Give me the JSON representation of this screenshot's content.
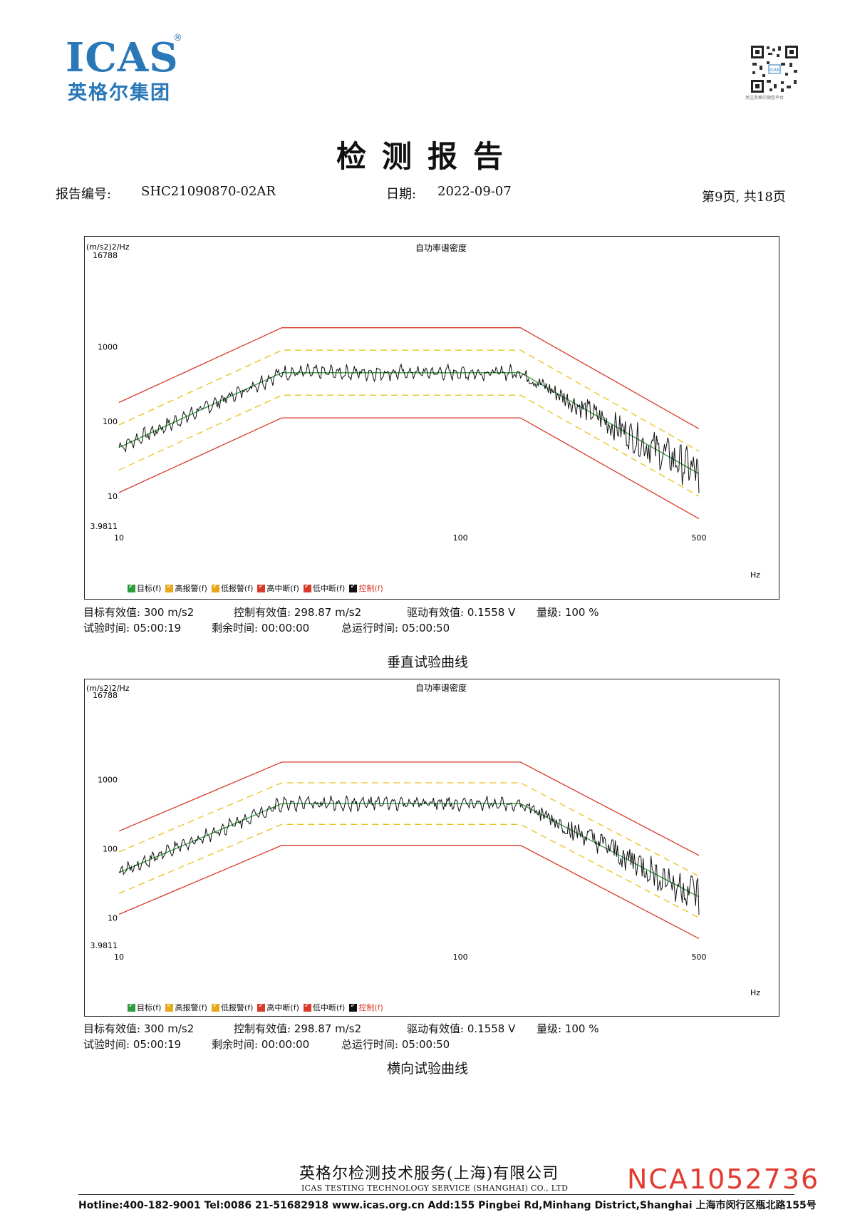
{
  "logo": {
    "text": "ICAS",
    "reg": "®",
    "cn": "英格尔集团"
  },
  "qr_caption": "关注英格尔微信平台",
  "title": "检测报告",
  "header": {
    "report_no_label": "报告编号:",
    "report_no": "SHC21090870-02AR",
    "date_label": "日期:",
    "date": "2022-09-07",
    "page": "第9页, 共18页"
  },
  "colors": {
    "target": "#2e9c3a",
    "alarm": "#e8c21a",
    "abort": "#d93a2a",
    "control": "#111111",
    "brand": "#2a78b8",
    "serial": "#e23b2f"
  },
  "legend": [
    {
      "label": "目标(f)",
      "color": "#2e9c3a"
    },
    {
      "label": "高报警(f)",
      "color": "#e8a81a"
    },
    {
      "label": "低报警(f)",
      "color": "#e8a81a"
    },
    {
      "label": "高中断(f)",
      "color": "#d93a2a"
    },
    {
      "label": "低中断(f)",
      "color": "#d93a2a"
    },
    {
      "label": "控制(f)",
      "color": "#111111"
    }
  ],
  "chart_data": [
    {
      "type": "line",
      "title": "自功率谱密度",
      "ylabel": "(m/s2)2/Hz",
      "xunit": "Hz",
      "xscale": "log",
      "yscale": "log",
      "xlim": [
        10,
        500
      ],
      "ylim": [
        3.9811,
        16788
      ],
      "y_tick_labels": [
        "16788",
        "1000",
        "100",
        "10",
        "3.9811"
      ],
      "x_tick_labels": [
        "10",
        "100",
        "500"
      ],
      "x_breakpoints": [
        10,
        30,
        150,
        500
      ],
      "series": [
        {
          "name": "目标(f)",
          "values": [
            45,
            450,
            450,
            20
          ]
        },
        {
          "name": "高报警(f)",
          "values": [
            90,
            900,
            900,
            40
          ]
        },
        {
          "name": "低报警(f)",
          "values": [
            22.5,
            225,
            225,
            10
          ]
        },
        {
          "name": "高中断(f)",
          "values": [
            180,
            1800,
            1800,
            80
          ]
        },
        {
          "name": "低中断(f)",
          "values": [
            11.2,
            112,
            112,
            5
          ]
        },
        {
          "name": "控制(f)",
          "note": ""
        }
      ]
    },
    {
      "type": "line",
      "title": "自功率谱密度",
      "ylabel": "(m/s2)2/Hz",
      "xunit": "Hz",
      "xscale": "log",
      "yscale": "log",
      "xlim": [
        10,
        500
      ],
      "ylim": [
        3.9811,
        16788
      ],
      "y_tick_labels": [
        "16788",
        "1000",
        "100",
        "10",
        "3.9811"
      ],
      "x_tick_labels": [
        "10",
        "100",
        "500"
      ],
      "x_breakpoints": [
        10,
        30,
        150,
        500
      ],
      "series": [
        {
          "name": "目标(f)",
          "values": [
            45,
            450,
            450,
            20
          ]
        },
        {
          "name": "高报警(f)",
          "values": [
            90,
            900,
            900,
            40
          ]
        },
        {
          "name": "低报警(f)",
          "values": [
            22.5,
            225,
            225,
            10
          ]
        },
        {
          "name": "高中断(f)",
          "values": [
            180,
            1800,
            1800,
            80
          ]
        },
        {
          "name": "低中断(f)",
          "values": [
            11.2,
            112,
            112,
            5
          ]
        },
        {
          "name": "控制(f)",
          "note": ""
        }
      ]
    }
  ],
  "stats": [
    {
      "target_rms_label": "目标有效值:",
      "target_rms": "300 m/s2",
      "control_rms_label": "控制有效值:",
      "control_rms": "298.87 m/s2",
      "drive_rms_label": "驱动有效值:",
      "drive_rms": "0.1558 V",
      "level_label": "量级:",
      "level": "100 %",
      "test_time_label": "试验时间:",
      "test_time": "05:00:19",
      "remaining_label": "剩余时间:",
      "remaining": "00:00:00",
      "total_label": "总运行时间:",
      "total": "05:00:50",
      "caption": "垂直试验曲线"
    },
    {
      "target_rms_label": "目标有效值:",
      "target_rms": "300 m/s2",
      "control_rms_label": "控制有效值:",
      "control_rms": "298.87 m/s2",
      "drive_rms_label": "驱动有效值:",
      "drive_rms": "0.1558 V",
      "level_label": "量级:",
      "level": "100 %",
      "test_time_label": "试验时间:",
      "test_time": "05:00:19",
      "remaining_label": "剩余时间:",
      "remaining": "00:00:00",
      "total_label": "总运行时间:",
      "total": "05:00:50",
      "caption": "横向试验曲线"
    }
  ],
  "footer": {
    "company_cn": "英格尔检测技术服务(上海)有限公司",
    "company_en": "ICAS TESTING TECHNOLOGY SERVICE (SHANGHAI) CO., LTD",
    "contact": "Hotline:400-182-9001  Tel:0086 21-51682918  www.icas.org.cn   Add:155 Pingbei Rd,Minhang District,Shanghai 上海市闵行区瓶北路155号",
    "serial": "NCA1052736"
  }
}
